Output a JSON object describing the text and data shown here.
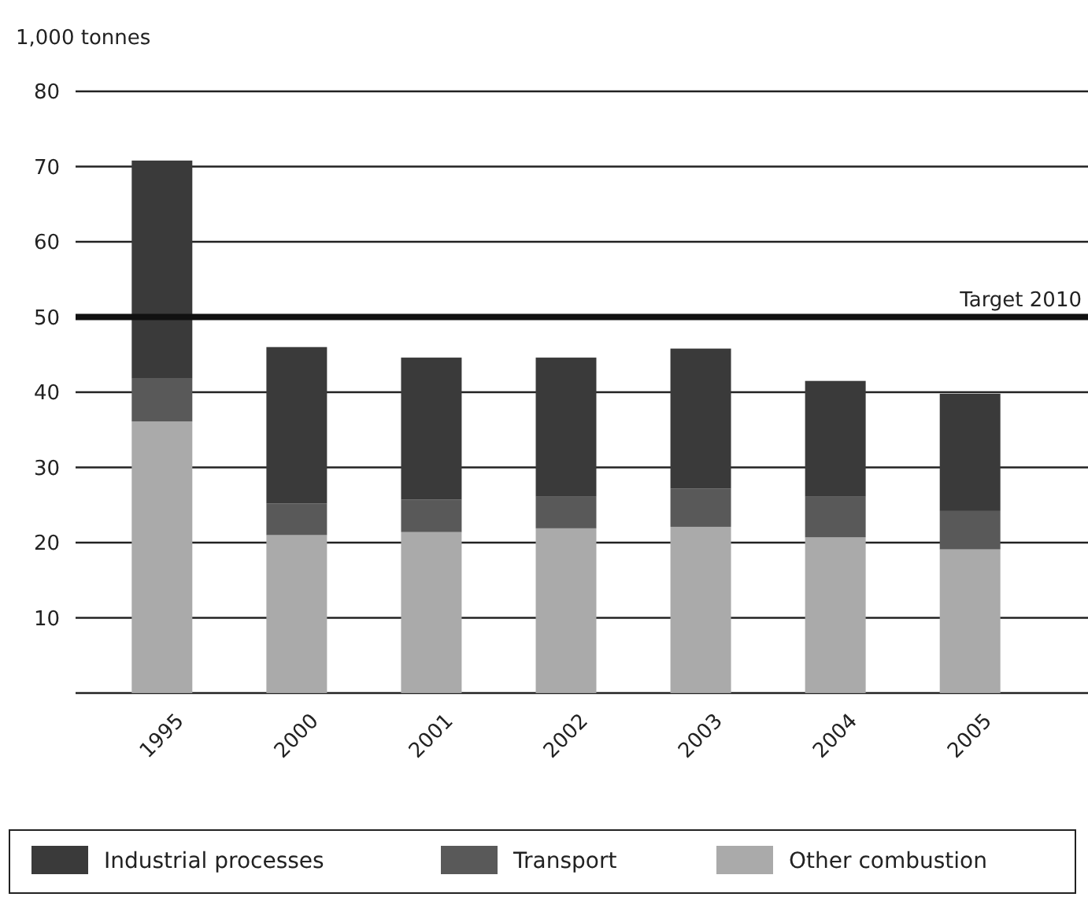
{
  "chart_data": {
    "type": "bar",
    "stacked": true,
    "ylabel": "1,000 tonnes",
    "categories": [
      "1995",
      "2000",
      "2001",
      "2002",
      "2003",
      "2004",
      "2005"
    ],
    "series": [
      {
        "name": "Other combustion",
        "color": "#aaaaaa",
        "values": [
          36.1,
          21.0,
          21.4,
          21.9,
          22.1,
          20.7,
          19.1
        ]
      },
      {
        "name": "Transport",
        "color": "#595959",
        "values": [
          5.7,
          4.2,
          4.3,
          4.2,
          5.1,
          5.4,
          5.1
        ]
      },
      {
        "name": "Industrial processes",
        "color": "#3a3a3a",
        "values": [
          29.0,
          20.8,
          18.9,
          18.5,
          18.6,
          15.4,
          15.6
        ]
      }
    ],
    "ylim": [
      0,
      80
    ],
    "yticks": [
      10,
      20,
      30,
      40,
      50,
      60,
      70,
      80
    ],
    "grid": "y",
    "legend": "bottom",
    "ref_lines": [
      {
        "axis": "y",
        "value": 50,
        "label": "Target 2010",
        "color": "#111111"
      }
    ]
  }
}
